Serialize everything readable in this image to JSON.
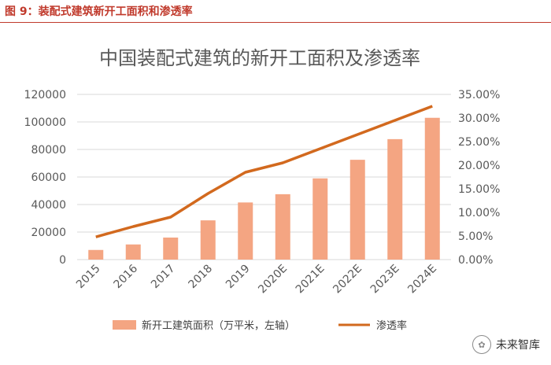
{
  "figure_label": "图 9：装配式建筑新开工面积和渗透率",
  "watermark": "未来智库",
  "colors": {
    "bar": "#F4A582",
    "line": "#D2691E",
    "grid": "#D9D9D9",
    "figure_label": "#C0392B"
  },
  "chart_data": {
    "type": "bar",
    "title": "中国装配式建筑的新开工面积及渗透率",
    "categories": [
      "2015",
      "2016",
      "2017",
      "2018",
      "2019",
      "2020E",
      "2021E",
      "2022E",
      "2023E",
      "2024E"
    ],
    "series": [
      {
        "name": "新开工建筑面积（万平米，左轴）",
        "type": "bar",
        "axis": "left",
        "values": [
          7000,
          11000,
          16000,
          28500,
          41500,
          47500,
          59000,
          72500,
          87500,
          103000
        ]
      },
      {
        "name": "渗透率",
        "type": "line",
        "axis": "right",
        "values": [
          0.048,
          0.07,
          0.09,
          0.14,
          0.185,
          0.205,
          0.235,
          0.265,
          0.295,
          0.325
        ]
      }
    ],
    "y_left": {
      "ylim": [
        0,
        120000
      ],
      "ticks": [
        "0",
        "20000",
        "40000",
        "60000",
        "80000",
        "100000",
        "120000"
      ]
    },
    "y_right": {
      "ylim": [
        0,
        0.35
      ],
      "ticks": [
        "0.00%",
        "5.00%",
        "10.00%",
        "15.00%",
        "20.00%",
        "25.00%",
        "30.00%",
        "35.00%"
      ]
    },
    "grid": true,
    "legend_position": "bottom"
  }
}
